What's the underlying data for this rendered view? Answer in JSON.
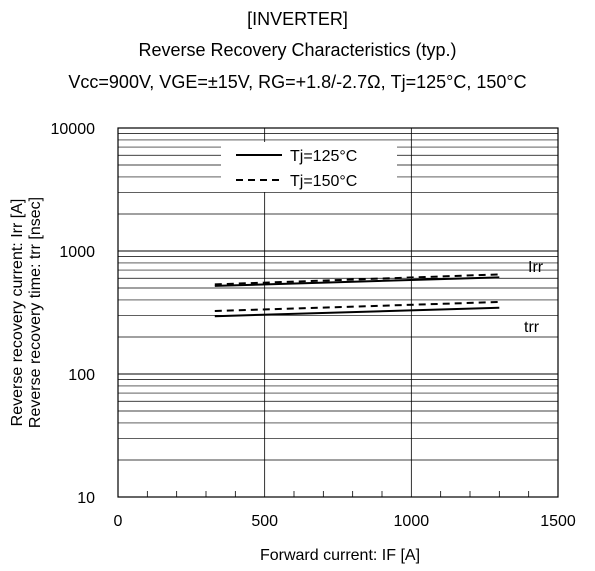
{
  "titles": {
    "line1": "[INVERTER]",
    "line2": "Reverse Recovery Characteristics (typ.)",
    "line3": "Vcc=900V, VGE=±15V, RG=+1.8/-2.7Ω, Tj=125°C, 150°C"
  },
  "chart_data": {
    "type": "line",
    "xlabel": "Forward current: IF [A]",
    "ylabel_lines": [
      "Reverse recovery current: Irr [A]",
      "Reverse recovery time: trr [nsec]"
    ],
    "xlim": [
      0,
      1500
    ],
    "ylim": [
      10,
      10000
    ],
    "yscale": "log",
    "x_ticks": [
      "0",
      "500",
      "1000",
      "1500"
    ],
    "y_ticks": [
      "10",
      "100",
      "1000",
      "10000"
    ],
    "grid": true,
    "legend_position": "top-center",
    "legend": [
      {
        "label": "Tj=125°C",
        "style": "solid"
      },
      {
        "label": "Tj=150°C",
        "style": "dashed"
      }
    ],
    "curve_labels": [
      "Irr",
      "trr"
    ],
    "series": [
      {
        "name": "Tj=125°C",
        "curve": "Irr",
        "style": "solid",
        "x": [
          330,
          1300
        ],
        "y": [
          520,
          610
        ]
      },
      {
        "name": "Tj=150°C",
        "curve": "Irr",
        "style": "dashed",
        "x": [
          330,
          1300
        ],
        "y": [
          535,
          645
        ]
      },
      {
        "name": "Tj=125°C",
        "curve": "trr",
        "style": "solid",
        "x": [
          330,
          1300
        ],
        "y": [
          295,
          345
        ]
      },
      {
        "name": "Tj=150°C",
        "curve": "trr",
        "style": "dashed",
        "x": [
          330,
          1300
        ],
        "y": [
          325,
          385
        ]
      }
    ]
  }
}
